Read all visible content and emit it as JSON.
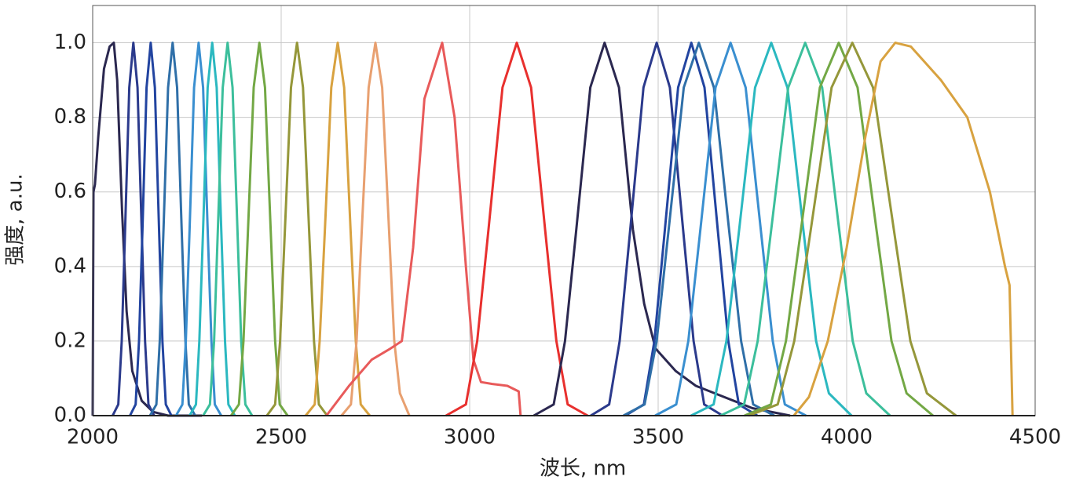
{
  "chart_data": {
    "type": "line",
    "xlabel": "波长, nm",
    "ylabel": "强度, a.u.",
    "xlim": [
      2000,
      4500
    ],
    "ylim": [
      0,
      1.1
    ],
    "xticks": [
      2000,
      2500,
      3000,
      3500,
      4000,
      4500
    ],
    "yticks": [
      {
        "value": 0,
        "label": "0.0"
      },
      {
        "value": 0.2,
        "label": "0.2"
      },
      {
        "value": 0.4,
        "label": "0.4"
      },
      {
        "value": 0.6,
        "label": "0.6"
      },
      {
        "value": 0.8,
        "label": "0.8"
      },
      {
        "value": 1.0,
        "label": "1.0"
      }
    ],
    "grid": true,
    "series": [
      {
        "color": "#2b2850",
        "x": [
          2000,
          2002,
          2006,
          2015,
          2030,
          2045,
          2056,
          2065,
          2078,
          2090,
          2105,
          2130,
          2160,
          2200,
          2240,
          2290
        ],
        "values": [
          0,
          0.6,
          0.62,
          0.75,
          0.93,
          0.99,
          1,
          0.9,
          0.55,
          0.28,
          0.12,
          0.04,
          0.01,
          0,
          0,
          0
        ]
      },
      {
        "color": "#2b3a8c",
        "x": [
          2053,
          2068,
          2077,
          2086,
          2097,
          2108,
          2119,
          2130,
          2139,
          2148,
          2163
        ],
        "values": [
          0,
          0.03,
          0.2,
          0.5,
          0.88,
          1,
          0.88,
          0.5,
          0.2,
          0.03,
          0
        ]
      },
      {
        "color": "#2244a0",
        "x": [
          2099,
          2114,
          2123,
          2132,
          2143,
          2154,
          2165,
          2176,
          2185,
          2194,
          2209
        ],
        "values": [
          0,
          0.03,
          0.2,
          0.5,
          0.88,
          1,
          0.88,
          0.5,
          0.2,
          0.03,
          0
        ]
      },
      {
        "color": "#2f6fa8",
        "x": [
          2152,
          2169,
          2178,
          2188,
          2200,
          2212,
          2224,
          2236,
          2246,
          2255,
          2272
        ],
        "values": [
          0,
          0.03,
          0.2,
          0.5,
          0.88,
          1,
          0.88,
          0.5,
          0.2,
          0.03,
          0
        ]
      },
      {
        "color": "#3a8fd0",
        "x": [
          2221,
          2238,
          2247,
          2257,
          2269,
          2281,
          2293,
          2305,
          2315,
          2324,
          2341
        ],
        "values": [
          0,
          0.03,
          0.2,
          0.5,
          0.88,
          1,
          0.88,
          0.5,
          0.2,
          0.03,
          0
        ]
      },
      {
        "color": "#2bb8c0",
        "x": [
          2257,
          2274,
          2283,
          2293,
          2305,
          2317,
          2329,
          2341,
          2351,
          2360,
          2377
        ],
        "values": [
          0,
          0.03,
          0.2,
          0.5,
          0.88,
          1,
          0.88,
          0.5,
          0.2,
          0.03,
          0
        ]
      },
      {
        "color": "#3cbf9c",
        "x": [
          2293,
          2311,
          2322,
          2332,
          2345,
          2358,
          2371,
          2384,
          2394,
          2405,
          2423
        ],
        "values": [
          0,
          0.03,
          0.2,
          0.5,
          0.88,
          1,
          0.88,
          0.5,
          0.2,
          0.03,
          0
        ]
      },
      {
        "color": "#73a845",
        "x": [
          2367,
          2388,
          2400,
          2412,
          2427,
          2442,
          2457,
          2472,
          2484,
          2496,
          2517
        ],
        "values": [
          0,
          0.03,
          0.2,
          0.5,
          0.88,
          1,
          0.88,
          0.5,
          0.2,
          0.03,
          0
        ]
      },
      {
        "color": "#95973a",
        "x": [
          2462,
          2484,
          2497,
          2510,
          2526,
          2542,
          2558,
          2574,
          2587,
          2600,
          2622
        ],
        "values": [
          0,
          0.03,
          0.2,
          0.5,
          0.88,
          1,
          0.88,
          0.5,
          0.2,
          0.03,
          0
        ]
      },
      {
        "color": "#d8a240",
        "x": [
          2565,
          2589,
          2602,
          2616,
          2633,
          2650,
          2667,
          2684,
          2698,
          2711,
          2735
        ],
        "values": [
          0,
          0.03,
          0.2,
          0.5,
          0.88,
          1,
          0.88,
          0.5,
          0.2,
          0.03,
          0
        ]
      },
      {
        "color": "#e8a070",
        "x": [
          2660,
          2685,
          2700,
          2714,
          2732,
          2750,
          2768,
          2786,
          2800,
          2815,
          2840
        ],
        "values": [
          0,
          0.03,
          0.2,
          0.5,
          0.88,
          1,
          0.88,
          0.5,
          0.2,
          0.06,
          0
        ]
      },
      {
        "color": "#e85a5a",
        "x": [
          2620,
          2680,
          2740,
          2790,
          2820,
          2850,
          2880,
          2927,
          2960,
          2990,
          3010,
          3030,
          3060,
          3100,
          3130,
          3135
        ],
        "values": [
          0,
          0.08,
          0.15,
          0.18,
          0.2,
          0.45,
          0.85,
          1,
          0.8,
          0.4,
          0.15,
          0.09,
          0.085,
          0.08,
          0.065,
          0
        ]
      },
      {
        "color": "#e8302e",
        "x": [
          2937,
          2990,
          3020,
          3050,
          3087,
          3125,
          3163,
          3200,
          3230,
          3260,
          3313
        ],
        "values": [
          0,
          0.03,
          0.2,
          0.5,
          0.88,
          1,
          0.88,
          0.5,
          0.2,
          0.03,
          0
        ]
      },
      {
        "color": "#2b2850",
        "x": [
          3170,
          3223,
          3253,
          3283,
          3320,
          3358,
          3396,
          3433,
          3463,
          3493,
          3546,
          3600,
          3750,
          3850
        ],
        "values": [
          0,
          0.03,
          0.2,
          0.5,
          0.88,
          1,
          0.88,
          0.5,
          0.3,
          0.18,
          0.12,
          0.08,
          0.02,
          0
        ]
      },
      {
        "color": "#2b3a8c",
        "x": [
          3321,
          3370,
          3398,
          3426,
          3461,
          3496,
          3531,
          3566,
          3594,
          3622,
          3671
        ],
        "values": [
          0,
          0.03,
          0.2,
          0.5,
          0.88,
          1,
          0.88,
          0.5,
          0.2,
          0.03,
          0
        ]
      },
      {
        "color": "#2244a0",
        "x": [
          3413,
          3462,
          3490,
          3518,
          3553,
          3588,
          3623,
          3658,
          3686,
          3714,
          3763
        ],
        "values": [
          0,
          0.03,
          0.2,
          0.5,
          0.88,
          1,
          0.88,
          0.5,
          0.2,
          0.03,
          0
        ]
      },
      {
        "color": "#2f6fa8",
        "x": [
          3408,
          3464,
          3496,
          3528,
          3568,
          3608,
          3648,
          3688,
          3720,
          3752,
          3808
        ],
        "values": [
          0,
          0.03,
          0.2,
          0.5,
          0.88,
          1,
          0.88,
          0.5,
          0.2,
          0.03,
          0
        ]
      },
      {
        "color": "#3a8fd0",
        "x": [
          3492,
          3548,
          3580,
          3612,
          3652,
          3692,
          3732,
          3772,
          3804,
          3836,
          3892
        ],
        "values": [
          0,
          0.03,
          0.2,
          0.5,
          0.88,
          1,
          0.88,
          0.5,
          0.2,
          0.03,
          0
        ]
      },
      {
        "color": "#2bb8c0",
        "x": [
          3587,
          3647,
          3681,
          3715,
          3757,
          3800,
          3843,
          3885,
          3919,
          3953,
          4013
        ],
        "values": [
          0,
          0.03,
          0.2,
          0.5,
          0.88,
          1,
          0.88,
          0.5,
          0.2,
          0.06,
          0
        ]
      },
      {
        "color": "#3cbf9c",
        "x": [
          3665,
          3728,
          3764,
          3800,
          3845,
          3890,
          3935,
          3980,
          4016,
          4052,
          4115
        ],
        "values": [
          0,
          0.03,
          0.2,
          0.5,
          0.88,
          1,
          0.88,
          0.5,
          0.2,
          0.06,
          0
        ]
      },
      {
        "color": "#73a845",
        "x": [
          3729,
          3799,
          3839,
          3879,
          3929,
          3979,
          4029,
          4079,
          4119,
          4159,
          4229
        ],
        "values": [
          0,
          0.03,
          0.2,
          0.5,
          0.88,
          1,
          0.88,
          0.5,
          0.2,
          0.06,
          0
        ]
      },
      {
        "color": "#95973a",
        "x": [
          3740,
          3817,
          3861,
          3905,
          3960,
          4015,
          4070,
          4125,
          4169,
          4213,
          4290
        ],
        "values": [
          0,
          0.03,
          0.2,
          0.5,
          0.88,
          1,
          0.88,
          0.5,
          0.2,
          0.06,
          0
        ]
      },
      {
        "color": "#d8a240",
        "x": [
          3860,
          3900,
          3950,
          4000,
          4050,
          4090,
          4129,
          4170,
          4250,
          4320,
          4380,
          4420,
          4432,
          4440
        ],
        "values": [
          0,
          0.05,
          0.2,
          0.45,
          0.75,
          0.95,
          1,
          0.99,
          0.9,
          0.8,
          0.6,
          0.4,
          0.35,
          0
        ]
      }
    ]
  }
}
